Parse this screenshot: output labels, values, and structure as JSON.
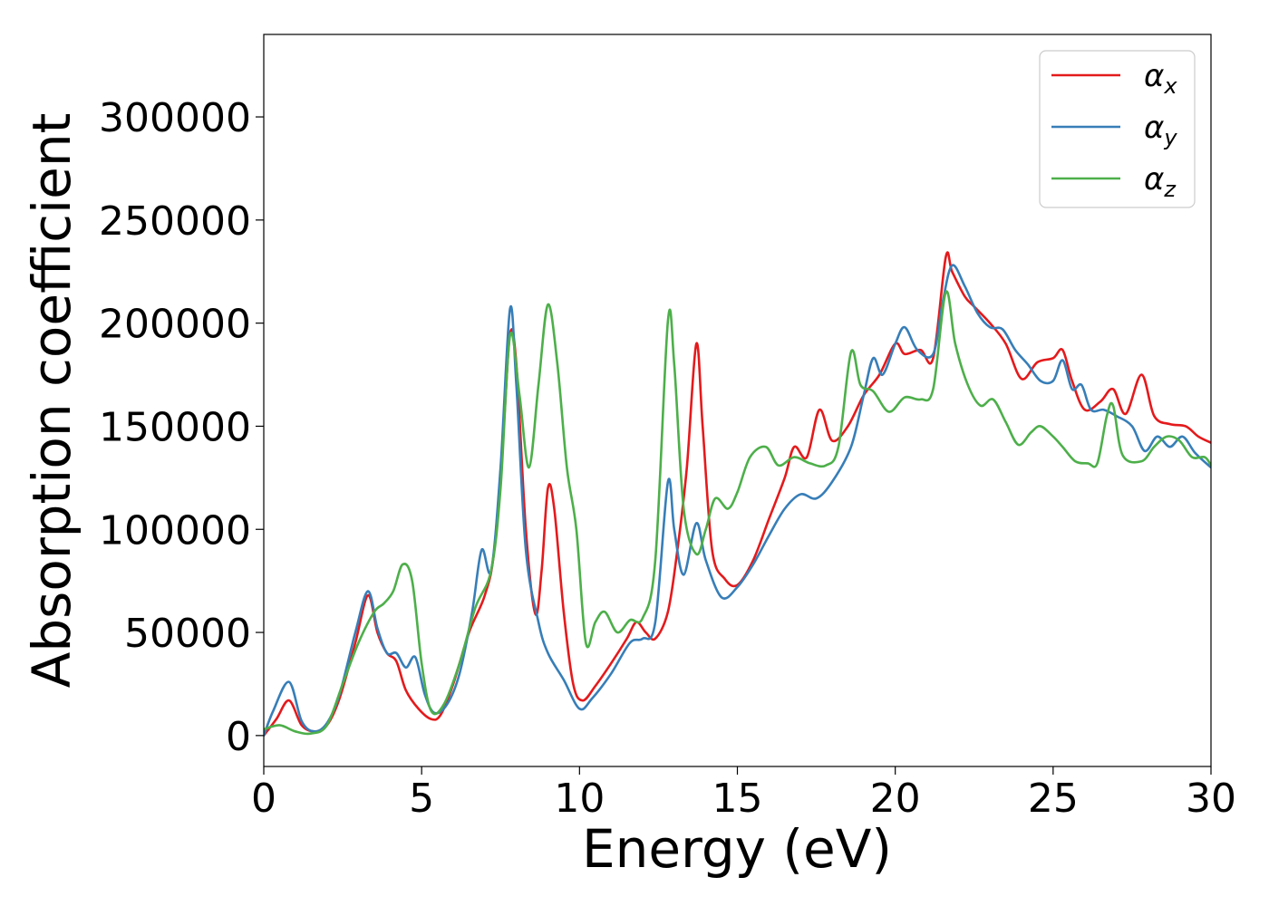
{
  "chart_data": {
    "type": "line",
    "title": "",
    "xlabel": "Energy (eV)",
    "ylabel": "Absorption coefficient",
    "xlim": [
      0,
      30
    ],
    "ylim": [
      -15000,
      340000
    ],
    "xticks": [
      "0",
      "5",
      "10",
      "15",
      "20",
      "25",
      "30"
    ],
    "yticks": [
      "0",
      "50000",
      "100000",
      "150000",
      "200000",
      "250000",
      "300000"
    ],
    "grid": false,
    "legend": "top-right",
    "series": [
      {
        "name": "α_x",
        "legend_base": "α",
        "legend_sub": "x",
        "color": "#e41a1c",
        "points": [
          [
            0,
            0
          ],
          [
            0.4,
            8000
          ],
          [
            0.8,
            17000
          ],
          [
            1.2,
            5000
          ],
          [
            1.6,
            2000
          ],
          [
            2.0,
            5000
          ],
          [
            2.4,
            18000
          ],
          [
            2.9,
            45000
          ],
          [
            3.3,
            68000
          ],
          [
            3.6,
            50000
          ],
          [
            3.9,
            40000
          ],
          [
            4.2,
            36000
          ],
          [
            4.5,
            22000
          ],
          [
            4.9,
            13000
          ],
          [
            5.3,
            8000
          ],
          [
            5.6,
            10000
          ],
          [
            6.0,
            25000
          ],
          [
            6.5,
            50000
          ],
          [
            7.0,
            68000
          ],
          [
            7.3,
            90000
          ],
          [
            7.6,
            150000
          ],
          [
            7.8,
            195000
          ],
          [
            8.0,
            180000
          ],
          [
            8.3,
            100000
          ],
          [
            8.6,
            59000
          ],
          [
            8.8,
            80000
          ],
          [
            9.0,
            120000
          ],
          [
            9.2,
            110000
          ],
          [
            9.5,
            60000
          ],
          [
            9.8,
            25000
          ],
          [
            10.1,
            17000
          ],
          [
            10.5,
            24000
          ],
          [
            11.0,
            35000
          ],
          [
            11.5,
            47000
          ],
          [
            11.8,
            55000
          ],
          [
            12.1,
            50000
          ],
          [
            12.4,
            47000
          ],
          [
            12.8,
            60000
          ],
          [
            13.1,
            90000
          ],
          [
            13.4,
            130000
          ],
          [
            13.7,
            190000
          ],
          [
            13.9,
            150000
          ],
          [
            14.2,
            90000
          ],
          [
            14.6,
            76000
          ],
          [
            15.0,
            73000
          ],
          [
            15.5,
            85000
          ],
          [
            16.0,
            105000
          ],
          [
            16.5,
            125000
          ],
          [
            16.8,
            140000
          ],
          [
            17.2,
            135000
          ],
          [
            17.6,
            158000
          ],
          [
            18.0,
            143000
          ],
          [
            18.5,
            150000
          ],
          [
            19.0,
            165000
          ],
          [
            19.5,
            175000
          ],
          [
            20.0,
            190000
          ],
          [
            20.3,
            185000
          ],
          [
            20.8,
            187000
          ],
          [
            21.2,
            183000
          ],
          [
            21.6,
            232000
          ],
          [
            21.8,
            225000
          ],
          [
            22.2,
            213000
          ],
          [
            22.5,
            208000
          ],
          [
            23.0,
            200000
          ],
          [
            23.5,
            190000
          ],
          [
            24.0,
            173000
          ],
          [
            24.5,
            181000
          ],
          [
            25.0,
            183000
          ],
          [
            25.3,
            187000
          ],
          [
            25.6,
            172000
          ],
          [
            26.0,
            158000
          ],
          [
            26.5,
            162000
          ],
          [
            26.9,
            168000
          ],
          [
            27.3,
            156000
          ],
          [
            27.8,
            175000
          ],
          [
            28.2,
            155000
          ],
          [
            28.7,
            151000
          ],
          [
            29.2,
            150000
          ],
          [
            29.6,
            145000
          ],
          [
            30,
            142000
          ]
        ]
      },
      {
        "name": "α_y",
        "legend_base": "α",
        "legend_sub": "y",
        "color": "#377eb8",
        "points": [
          [
            0,
            0
          ],
          [
            0.3,
            12000
          ],
          [
            0.8,
            26000
          ],
          [
            1.2,
            7000
          ],
          [
            1.6,
            2000
          ],
          [
            2.0,
            6000
          ],
          [
            2.4,
            20000
          ],
          [
            2.9,
            50000
          ],
          [
            3.3,
            70000
          ],
          [
            3.6,
            52000
          ],
          [
            3.9,
            40000
          ],
          [
            4.2,
            40000
          ],
          [
            4.5,
            33000
          ],
          [
            4.8,
            38000
          ],
          [
            5.1,
            20000
          ],
          [
            5.4,
            11000
          ],
          [
            5.8,
            15000
          ],
          [
            6.2,
            30000
          ],
          [
            6.6,
            60000
          ],
          [
            6.9,
            90000
          ],
          [
            7.2,
            80000
          ],
          [
            7.5,
            130000
          ],
          [
            7.8,
            207000
          ],
          [
            8.0,
            170000
          ],
          [
            8.3,
            90000
          ],
          [
            8.7,
            55000
          ],
          [
            9.0,
            40000
          ],
          [
            9.5,
            27000
          ],
          [
            10.0,
            13000
          ],
          [
            10.4,
            18000
          ],
          [
            11.0,
            30000
          ],
          [
            11.6,
            45000
          ],
          [
            12.0,
            47000
          ],
          [
            12.4,
            55000
          ],
          [
            12.8,
            123000
          ],
          [
            13.0,
            100000
          ],
          [
            13.3,
            78000
          ],
          [
            13.7,
            103000
          ],
          [
            14.0,
            85000
          ],
          [
            14.5,
            67000
          ],
          [
            15.0,
            72000
          ],
          [
            15.5,
            83000
          ],
          [
            16.0,
            97000
          ],
          [
            16.5,
            110000
          ],
          [
            17.0,
            117000
          ],
          [
            17.5,
            115000
          ],
          [
            18.0,
            123000
          ],
          [
            18.6,
            140000
          ],
          [
            19.0,
            165000
          ],
          [
            19.3,
            183000
          ],
          [
            19.6,
            175000
          ],
          [
            20.0,
            190000
          ],
          [
            20.3,
            198000
          ],
          [
            20.7,
            187000
          ],
          [
            21.2,
            185000
          ],
          [
            21.5,
            210000
          ],
          [
            21.8,
            228000
          ],
          [
            22.2,
            218000
          ],
          [
            22.6,
            205000
          ],
          [
            23.0,
            198000
          ],
          [
            23.4,
            197000
          ],
          [
            23.8,
            187000
          ],
          [
            24.2,
            180000
          ],
          [
            24.6,
            172000
          ],
          [
            25.0,
            172000
          ],
          [
            25.3,
            182000
          ],
          [
            25.6,
            168000
          ],
          [
            25.9,
            170000
          ],
          [
            26.2,
            158000
          ],
          [
            26.6,
            158000
          ],
          [
            27.0,
            155000
          ],
          [
            27.5,
            150000
          ],
          [
            27.9,
            138000
          ],
          [
            28.3,
            145000
          ],
          [
            28.7,
            140000
          ],
          [
            29.1,
            145000
          ],
          [
            29.5,
            137000
          ],
          [
            30,
            130000
          ]
        ]
      },
      {
        "name": "α_z",
        "legend_base": "α",
        "legend_sub": "z",
        "color": "#4daf4a",
        "points": [
          [
            0,
            3000
          ],
          [
            0.5,
            5000
          ],
          [
            1.0,
            2000
          ],
          [
            1.5,
            1000
          ],
          [
            2.0,
            5000
          ],
          [
            2.5,
            25000
          ],
          [
            3.0,
            45000
          ],
          [
            3.5,
            60000
          ],
          [
            3.8,
            64000
          ],
          [
            4.1,
            70000
          ],
          [
            4.4,
            83000
          ],
          [
            4.7,
            75000
          ],
          [
            5.0,
            35000
          ],
          [
            5.3,
            12000
          ],
          [
            5.7,
            15000
          ],
          [
            6.2,
            35000
          ],
          [
            6.7,
            62000
          ],
          [
            7.2,
            80000
          ],
          [
            7.5,
            120000
          ],
          [
            7.8,
            194000
          ],
          [
            8.1,
            165000
          ],
          [
            8.4,
            130000
          ],
          [
            8.7,
            170000
          ],
          [
            9.0,
            209000
          ],
          [
            9.3,
            180000
          ],
          [
            9.6,
            130000
          ],
          [
            9.9,
            100000
          ],
          [
            10.2,
            45000
          ],
          [
            10.5,
            55000
          ],
          [
            10.8,
            60000
          ],
          [
            11.2,
            50000
          ],
          [
            11.6,
            56000
          ],
          [
            12.0,
            57000
          ],
          [
            12.4,
            85000
          ],
          [
            12.8,
            201000
          ],
          [
            13.0,
            180000
          ],
          [
            13.3,
            110000
          ],
          [
            13.7,
            88000
          ],
          [
            14.0,
            100000
          ],
          [
            14.3,
            115000
          ],
          [
            14.7,
            110000
          ],
          [
            15.0,
            118000
          ],
          [
            15.4,
            135000
          ],
          [
            15.9,
            140000
          ],
          [
            16.3,
            131000
          ],
          [
            16.8,
            135000
          ],
          [
            17.3,
            132000
          ],
          [
            17.8,
            131000
          ],
          [
            18.2,
            140000
          ],
          [
            18.6,
            186000
          ],
          [
            18.9,
            170000
          ],
          [
            19.3,
            167000
          ],
          [
            19.8,
            157000
          ],
          [
            20.3,
            164000
          ],
          [
            20.8,
            163000
          ],
          [
            21.2,
            168000
          ],
          [
            21.6,
            215000
          ],
          [
            21.9,
            190000
          ],
          [
            22.3,
            170000
          ],
          [
            22.7,
            160000
          ],
          [
            23.1,
            163000
          ],
          [
            23.5,
            152000
          ],
          [
            23.9,
            141000
          ],
          [
            24.3,
            147000
          ],
          [
            24.6,
            150000
          ],
          [
            25.0,
            145000
          ],
          [
            25.3,
            140000
          ],
          [
            25.7,
            133000
          ],
          [
            26.1,
            132000
          ],
          [
            26.4,
            132000
          ],
          [
            26.7,
            155000
          ],
          [
            26.9,
            160000
          ],
          [
            27.2,
            136000
          ],
          [
            27.8,
            133000
          ],
          [
            28.2,
            140000
          ],
          [
            28.6,
            145000
          ],
          [
            29.0,
            143000
          ],
          [
            29.4,
            135000
          ],
          [
            29.8,
            135000
          ],
          [
            30,
            131000
          ]
        ]
      }
    ]
  }
}
